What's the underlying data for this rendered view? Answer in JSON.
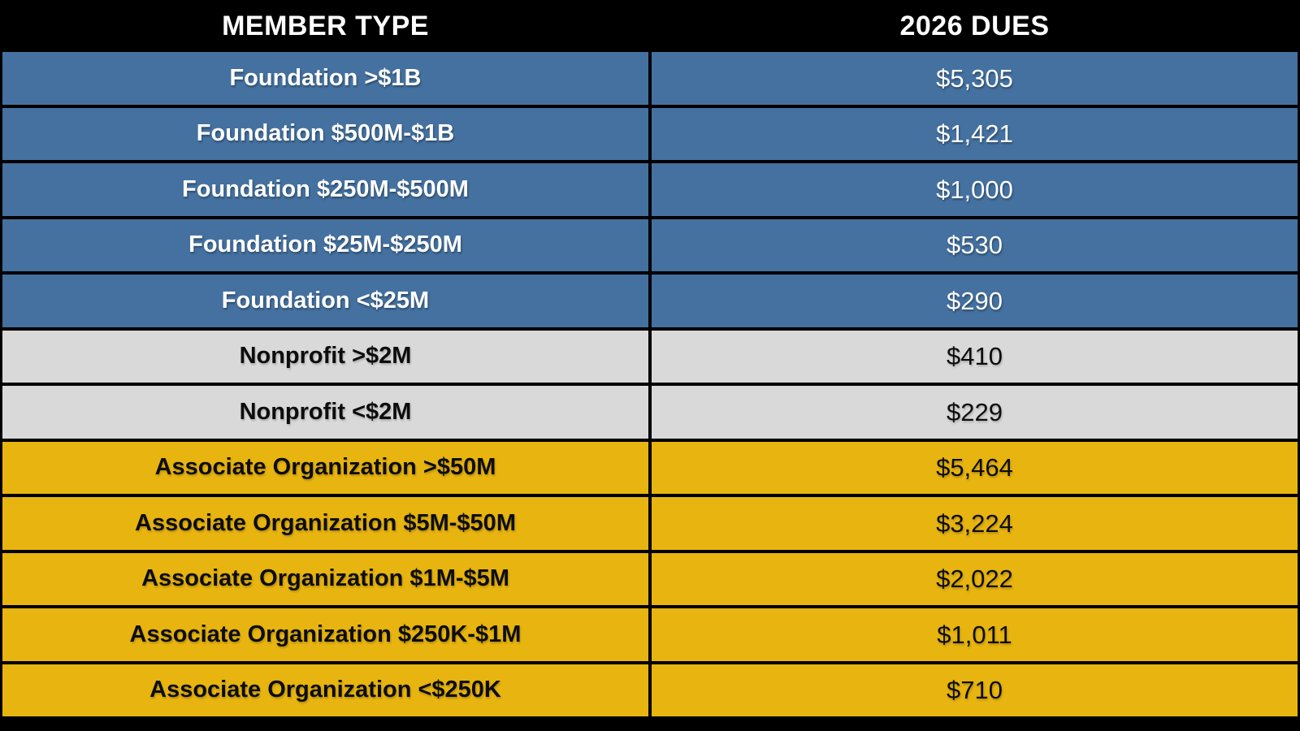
{
  "table": {
    "headers": [
      "MEMBER TYPE",
      "2026 DUES"
    ],
    "rows": [
      {
        "type": "Foundation >$1B",
        "dues": "$5,305",
        "group": "foundation"
      },
      {
        "type": "Foundation $500M-$1B",
        "dues": "$1,421",
        "group": "foundation"
      },
      {
        "type": "Foundation $250M-$500M",
        "dues": "$1,000",
        "group": "foundation"
      },
      {
        "type": "Foundation $25M-$250M",
        "dues": "$530",
        "group": "foundation"
      },
      {
        "type": "Foundation <$25M",
        "dues": "$290",
        "group": "foundation"
      },
      {
        "type": "Nonprofit >$2M",
        "dues": "$410",
        "group": "nonprofit"
      },
      {
        "type": "Nonprofit <$2M",
        "dues": "$229",
        "group": "nonprofit"
      },
      {
        "type": "Associate Organization >$50M",
        "dues": "$5,464",
        "group": "associate"
      },
      {
        "type": "Associate Organization $5M-$50M",
        "dues": "$3,224",
        "group": "associate"
      },
      {
        "type": "Associate Organization $1M-$5M",
        "dues": "$2,022",
        "group": "associate"
      },
      {
        "type": "Associate Organization $250K-$1M",
        "dues": "$1,011",
        "group": "associate"
      },
      {
        "type": "Associate Organization <$250K",
        "dues": "$710",
        "group": "associate"
      }
    ]
  },
  "groups": {
    "foundation": {
      "bg": "#4471A0",
      "text_style": "light-text"
    },
    "nonprofit": {
      "bg": "#D9D9D9",
      "text_style": "dark-text"
    },
    "associate": {
      "bg": "#E7B410",
      "text_style": "dark-text"
    }
  },
  "colors": {
    "background": "#000000",
    "header_bg": "#000000",
    "header_text": "#FFFFFF",
    "gridline": "#000000",
    "foundation_row": "#4471A0",
    "nonprofit_row": "#D9D9D9",
    "associate_row": "#E7B410"
  },
  "chart_data": {
    "type": "table",
    "title": "",
    "columns": [
      "MEMBER TYPE",
      "2026 DUES"
    ],
    "rows": [
      [
        "Foundation >$1B",
        "$5,305"
      ],
      [
        "Foundation $500M-$1B",
        "$1,421"
      ],
      [
        "Foundation $250M-$500M",
        "$1,000"
      ],
      [
        "Foundation $25M-$250M",
        "$530"
      ],
      [
        "Foundation <$25M",
        "$290"
      ],
      [
        "Nonprofit >$2M",
        "$410"
      ],
      [
        "Nonprofit <$2M",
        "$229"
      ],
      [
        "Associate Organization >$50M",
        "$5,464"
      ],
      [
        "Associate Organization $5M-$50M",
        "$3,224"
      ],
      [
        "Associate Organization $1M-$5M",
        "$2,022"
      ],
      [
        "Associate Organization $250K-$1M",
        "$1,011"
      ],
      [
        "Associate Organization <$250K",
        "$710"
      ]
    ],
    "values_numeric": [
      5305,
      1421,
      1000,
      530,
      290,
      410,
      229,
      5464,
      3224,
      2022,
      1011,
      710
    ]
  }
}
